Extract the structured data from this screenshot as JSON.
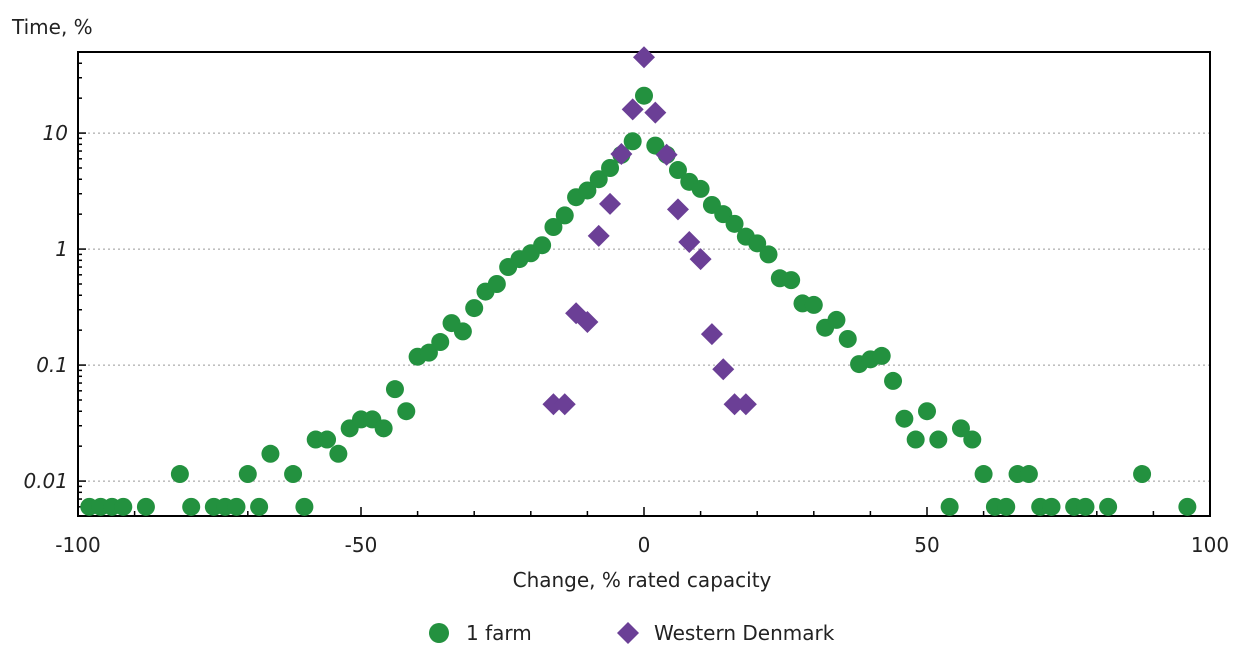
{
  "chart_data": {
    "type": "scatter",
    "ylabel": "Time, %",
    "xlabel": "Change, % rated capacity",
    "xlim": [
      -100,
      100
    ],
    "ylim": [
      0.005,
      50
    ],
    "y_scale": "log",
    "x_ticks": [
      -100,
      -50,
      0,
      50,
      100
    ],
    "y_ticks": [
      0.01,
      0.1,
      1,
      10
    ],
    "y_tick_labels": [
      "0.01",
      "0.1",
      "1",
      "10"
    ],
    "grid": "horizontal-dotted",
    "legend_position": "bottom",
    "series": [
      {
        "name": "1 farm",
        "color": "#23913f",
        "marker": "circle",
        "points": [
          [
            -98,
            0.006
          ],
          [
            -96,
            0.006
          ],
          [
            -94,
            0.006
          ],
          [
            -92,
            0.006
          ],
          [
            -88,
            0.006
          ],
          [
            -82,
            0.0115
          ],
          [
            -80,
            0.006
          ],
          [
            -76,
            0.006
          ],
          [
            -74,
            0.006
          ],
          [
            -72,
            0.006
          ],
          [
            -70,
            0.0115
          ],
          [
            -68,
            0.006
          ],
          [
            -66,
            0.0172
          ],
          [
            -62,
            0.0115
          ],
          [
            -60,
            0.006
          ],
          [
            -58,
            0.0228
          ],
          [
            -56,
            0.0228
          ],
          [
            -54,
            0.0172
          ],
          [
            -52,
            0.0285
          ],
          [
            -50,
            0.034
          ],
          [
            -48,
            0.034
          ],
          [
            -46,
            0.0285
          ],
          [
            -44,
            0.062
          ],
          [
            -42,
            0.04
          ],
          [
            -40,
            0.118
          ],
          [
            -38,
            0.128
          ],
          [
            -36,
            0.158
          ],
          [
            -34,
            0.23
          ],
          [
            -32,
            0.195
          ],
          [
            -30,
            0.31
          ],
          [
            -28,
            0.43
          ],
          [
            -26,
            0.5
          ],
          [
            -24,
            0.7
          ],
          [
            -22,
            0.82
          ],
          [
            -20,
            0.92
          ],
          [
            -18,
            1.08
          ],
          [
            -16,
            1.55
          ],
          [
            -14,
            1.95
          ],
          [
            -12,
            2.8
          ],
          [
            -10,
            3.2
          ],
          [
            -8,
            4.0
          ],
          [
            -6,
            5.0
          ],
          [
            -4,
            6.5
          ],
          [
            -2,
            8.5
          ],
          [
            0,
            21.0
          ],
          [
            2,
            7.8
          ],
          [
            4,
            6.5
          ],
          [
            6,
            4.8
          ],
          [
            8,
            3.8
          ],
          [
            10,
            3.3
          ],
          [
            12,
            2.4
          ],
          [
            14,
            2.0
          ],
          [
            16,
            1.65
          ],
          [
            18,
            1.28
          ],
          [
            20,
            1.12
          ],
          [
            22,
            0.9
          ],
          [
            24,
            0.56
          ],
          [
            26,
            0.54
          ],
          [
            28,
            0.34
          ],
          [
            30,
            0.33
          ],
          [
            32,
            0.21
          ],
          [
            34,
            0.245
          ],
          [
            36,
            0.168
          ],
          [
            38,
            0.102
          ],
          [
            40,
            0.112
          ],
          [
            42,
            0.12
          ],
          [
            44,
            0.073
          ],
          [
            46,
            0.0345
          ],
          [
            48,
            0.0228
          ],
          [
            50,
            0.04
          ],
          [
            52,
            0.0228
          ],
          [
            54,
            0.006
          ],
          [
            56,
            0.0285
          ],
          [
            58,
            0.0228
          ],
          [
            60,
            0.0115
          ],
          [
            62,
            0.006
          ],
          [
            64,
            0.006
          ],
          [
            66,
            0.0115
          ],
          [
            68,
            0.0115
          ],
          [
            70,
            0.006
          ],
          [
            72,
            0.006
          ],
          [
            76,
            0.006
          ],
          [
            78,
            0.006
          ],
          [
            82,
            0.006
          ],
          [
            88,
            0.0115
          ],
          [
            96,
            0.006
          ]
        ]
      },
      {
        "name": "Western Denmark",
        "color": "#6b3f96",
        "marker": "diamond",
        "points": [
          [
            -16,
            0.046
          ],
          [
            -14,
            0.046
          ],
          [
            -12,
            0.28
          ],
          [
            -10,
            0.235
          ],
          [
            -8,
            1.3
          ],
          [
            -6,
            2.45
          ],
          [
            -4,
            6.6
          ],
          [
            -2,
            16.0
          ],
          [
            0,
            45.0
          ],
          [
            2,
            15.0
          ],
          [
            4,
            6.5
          ],
          [
            6,
            2.2
          ],
          [
            8,
            1.15
          ],
          [
            10,
            0.82
          ],
          [
            12,
            0.185
          ],
          [
            14,
            0.092
          ],
          [
            16,
            0.046
          ],
          [
            18,
            0.046
          ]
        ]
      }
    ]
  }
}
